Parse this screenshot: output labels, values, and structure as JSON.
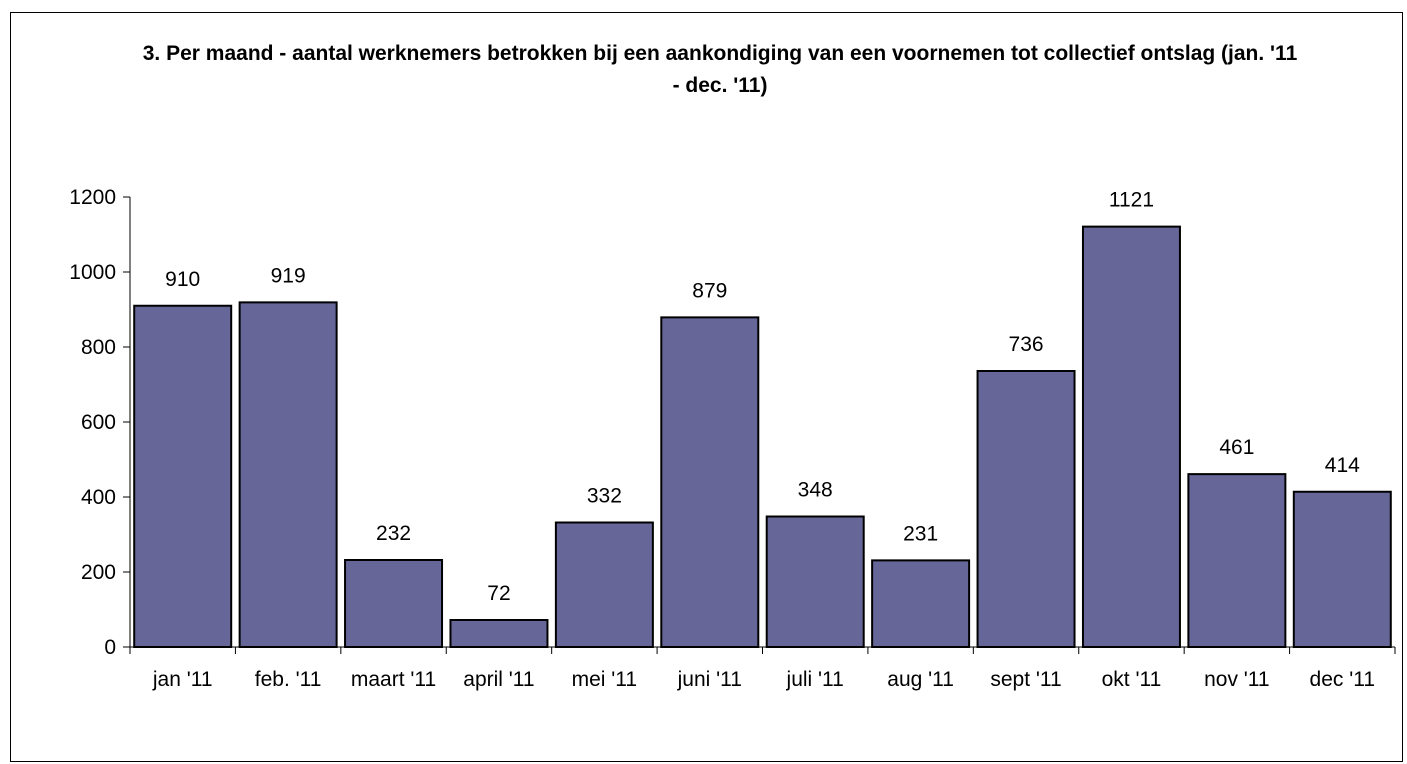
{
  "chart_data": {
    "type": "bar",
    "title": "3. Per maand - aantal werknemers betrokken bij een aankondiging van een voornemen tot collectief ontslag (jan. '11 - dec. '11)",
    "categories": [
      "jan '11",
      "feb. '11",
      "maart '11",
      "april '11",
      "mei '11",
      "juni '11",
      "juli '11",
      "aug '11",
      "sept '11",
      "okt '11",
      "nov '11",
      "dec '11"
    ],
    "values": [
      910,
      919,
      232,
      72,
      332,
      879,
      348,
      231,
      736,
      1121,
      461,
      414
    ],
    "color": "#666699",
    "ylim": [
      0,
      1200
    ],
    "yticks": [
      0,
      200,
      400,
      600,
      800,
      1000,
      1200
    ],
    "grid": false
  }
}
